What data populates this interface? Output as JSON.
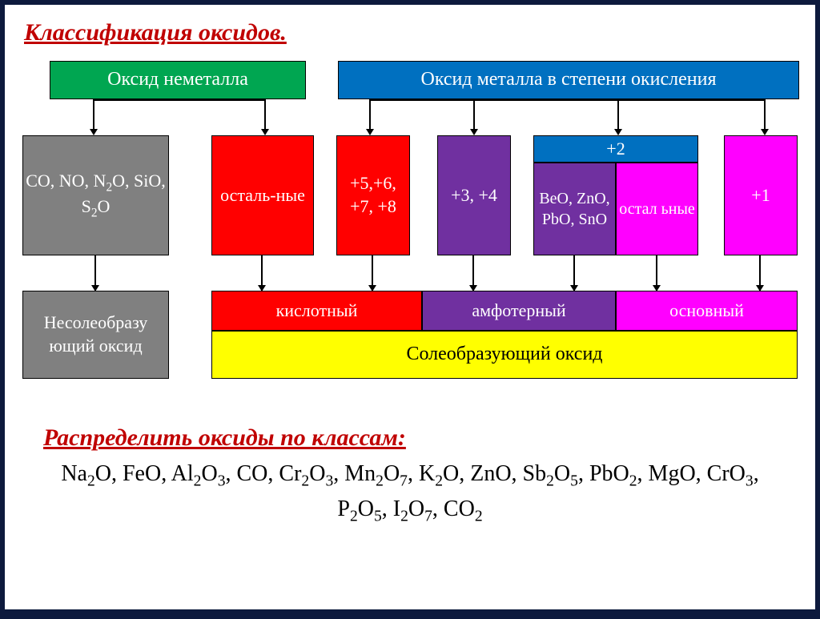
{
  "title": "Классификация оксидов.",
  "colors": {
    "green": "#00a651",
    "blue": "#0070c0",
    "gray": "#808080",
    "red": "#ff0000",
    "purple": "#7030a0",
    "magenta": "#ff00ff",
    "yellow": "#ffff00",
    "textWhite": "#ffffff",
    "textBlack": "#000000"
  },
  "top": {
    "nonmetal": "Оксид неметалла",
    "metal": "Оксид металла в степени окисления"
  },
  "row2": {
    "b1_html": "CO, NO, N<sub>2</sub>O, SiO, S<sub>2</sub>O",
    "b2": "осталь-ные",
    "b3": "+5,+6, +7, +8",
    "b4": "+3, +4",
    "b5top": "+2",
    "b5left_html": "BeO, ZnO, PbO, SnO",
    "b5right": "остал ьные",
    "b6": "+1"
  },
  "row3": {
    "nonsalt": "Несолеобразу ющий оксид",
    "acidic": "кислотный",
    "amphoteric": "амфотерный",
    "basic": "основный",
    "salt": "Солеобразующий оксид"
  },
  "task": {
    "title": "Распределить оксиды по классам:",
    "body_html": "Na<sub>2</sub>O, FeO, Al<sub>2</sub>O<sub>3</sub>, CO, Cr<sub>2</sub>O<sub>3</sub>, Mn<sub>2</sub>O<sub>7</sub>, K<sub>2</sub>O, ZnO, Sb<sub>2</sub>O<sub>5</sub>, PbO<sub>2</sub>, MgO, CrO<sub>3</sub>, P<sub>2</sub>O<sub>5</sub>, I<sub>2</sub>O<sub>7</sub>, CO<sub>2</sub>"
  },
  "layout": {
    "slide_w": 1012,
    "slide_h": 755,
    "font_row1": 24,
    "font_row2": 22,
    "font_row3": 22,
    "font_salt": 24
  }
}
